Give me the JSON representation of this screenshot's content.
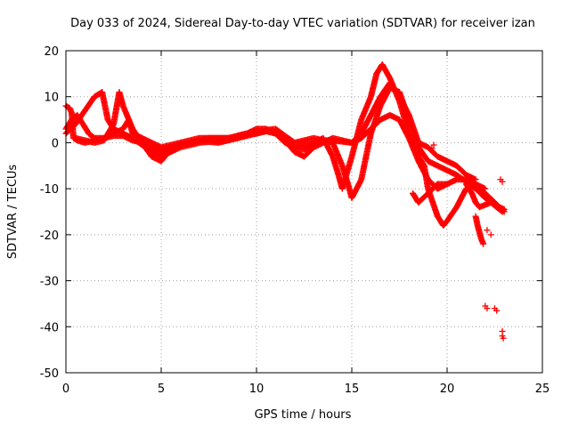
{
  "chart_data": {
    "type": "scatter",
    "title": "Day 033 of 2024, Sidereal Day-to-day VTEC variation (SDTVAR) for receiver izan",
    "xlabel": "GPS time / hours",
    "ylabel": "SDTVAR / TECUs",
    "xlim": [
      0,
      25
    ],
    "ylim": [
      -50,
      20
    ],
    "xticks": [
      0,
      5,
      10,
      15,
      20,
      25
    ],
    "yticks": [
      -50,
      -40,
      -30,
      -20,
      -10,
      0,
      10,
      20
    ],
    "xtick_labels": [
      "0",
      "5",
      "10",
      "15",
      "20",
      "25"
    ],
    "ytick_labels": [
      "-50",
      "-40",
      "-30",
      "-20",
      "-10",
      "0",
      "10",
      "20"
    ],
    "grid": true,
    "legend": "none",
    "marker": "+",
    "series_color": "#ff0000",
    "series": [
      {
        "name": "trace-a",
        "points": [
          [
            0.0,
            3
          ],
          [
            0.3,
            5
          ],
          [
            0.6,
            6
          ],
          [
            0.9,
            4
          ],
          [
            1.2,
            2
          ],
          [
            1.5,
            1
          ],
          [
            2.0,
            1
          ],
          [
            2.5,
            1.5
          ],
          [
            3.0,
            1.5
          ],
          [
            3.5,
            0.5
          ],
          [
            4.0,
            0
          ],
          [
            4.5,
            -1
          ],
          [
            5.0,
            -2
          ],
          [
            5.5,
            -1
          ],
          [
            6.0,
            -0.3
          ],
          [
            6.5,
            0
          ],
          [
            7.0,
            0.5
          ],
          [
            7.5,
            0.5
          ],
          [
            8.0,
            0.3
          ],
          [
            8.5,
            0.5
          ],
          [
            9.0,
            1
          ],
          [
            9.5,
            1.5
          ],
          [
            10.0,
            2
          ],
          [
            10.5,
            2.5
          ],
          [
            11.0,
            2.5
          ],
          [
            11.5,
            0.5
          ],
          [
            12.0,
            -2
          ],
          [
            12.5,
            -3
          ],
          [
            13.0,
            -1
          ],
          [
            13.5,
            0
          ],
          [
            14.0,
            1
          ],
          [
            14.5,
            0.5
          ],
          [
            15.0,
            0
          ],
          [
            15.5,
            1
          ],
          [
            16.0,
            3
          ],
          [
            16.5,
            5
          ],
          [
            17.0,
            6
          ],
          [
            17.5,
            5
          ],
          [
            18.0,
            1
          ],
          [
            18.5,
            -4
          ],
          [
            19.0,
            -8
          ],
          [
            19.5,
            -10
          ],
          [
            20.0,
            -9
          ],
          [
            20.5,
            -8
          ],
          [
            21.0,
            -8
          ],
          [
            21.5,
            -9
          ],
          [
            22.0,
            -11
          ],
          [
            22.5,
            -13
          ],
          [
            23.0,
            -15
          ]
        ]
      },
      {
        "name": "trace-b",
        "points": [
          [
            0.0,
            2
          ],
          [
            0.5,
            4
          ],
          [
            1.0,
            7
          ],
          [
            1.5,
            10
          ],
          [
            1.9,
            11
          ],
          [
            2.2,
            5
          ],
          [
            2.5,
            3
          ],
          [
            3.0,
            2
          ],
          [
            3.5,
            1
          ],
          [
            4.0,
            -0.5
          ],
          [
            4.5,
            -2
          ],
          [
            5.0,
            -3
          ],
          [
            5.5,
            -2
          ],
          [
            6.0,
            -1
          ],
          [
            6.5,
            -0.5
          ],
          [
            7.0,
            0
          ],
          [
            7.5,
            0.2
          ],
          [
            8.0,
            0
          ],
          [
            8.5,
            0.5
          ],
          [
            9.0,
            1.5
          ],
          [
            9.5,
            2
          ],
          [
            10.0,
            2
          ],
          [
            10.5,
            2.5
          ],
          [
            11.0,
            2
          ],
          [
            11.5,
            0
          ],
          [
            12.0,
            -1
          ],
          [
            12.5,
            -1.5
          ],
          [
            13.0,
            -0.5
          ],
          [
            13.5,
            0.5
          ],
          [
            14.0,
            0
          ],
          [
            14.5,
            -5
          ],
          [
            14.8,
            -9
          ],
          [
            15.0,
            -12
          ],
          [
            15.5,
            -8
          ],
          [
            16.0,
            2
          ],
          [
            16.5,
            8
          ],
          [
            17.0,
            12
          ],
          [
            17.5,
            11
          ],
          [
            18.0,
            5
          ],
          [
            18.5,
            -1
          ],
          [
            19.0,
            -4
          ],
          [
            19.5,
            -5
          ],
          [
            20.0,
            -6
          ],
          [
            20.5,
            -7
          ],
          [
            21.0,
            -8.5
          ],
          [
            21.5,
            -10
          ],
          [
            22.0,
            -12
          ],
          [
            22.5,
            -13.5
          ],
          [
            23.0,
            -14.5
          ]
        ]
      },
      {
        "name": "trace-c",
        "points": [
          [
            0.5,
            1
          ],
          [
            1.0,
            0.5
          ],
          [
            1.5,
            0
          ],
          [
            2.0,
            0.5
          ],
          [
            2.5,
            4
          ],
          [
            2.8,
            11
          ],
          [
            3.0,
            8
          ],
          [
            3.5,
            3
          ],
          [
            4.0,
            0
          ],
          [
            4.5,
            -3
          ],
          [
            5.0,
            -4
          ],
          [
            5.5,
            -1.5
          ],
          [
            6.0,
            -0.5
          ],
          [
            6.5,
            0
          ],
          [
            7.0,
            0.5
          ],
          [
            7.5,
            1
          ],
          [
            8.0,
            1
          ],
          [
            8.5,
            1
          ],
          [
            9.0,
            1.5
          ],
          [
            9.5,
            2
          ],
          [
            10.0,
            3
          ],
          [
            10.5,
            3
          ],
          [
            11.0,
            2
          ],
          [
            11.5,
            0.5
          ],
          [
            12.0,
            -1
          ],
          [
            12.5,
            -0.5
          ],
          [
            13.0,
            0
          ],
          [
            13.5,
            1
          ],
          [
            14.0,
            -3
          ],
          [
            14.3,
            -7
          ],
          [
            14.5,
            -10
          ],
          [
            15.0,
            -3
          ],
          [
            15.5,
            5
          ],
          [
            16.0,
            10
          ],
          [
            16.3,
            15
          ],
          [
            16.6,
            17
          ],
          [
            17.0,
            14
          ],
          [
            17.5,
            9
          ],
          [
            18.0,
            2
          ],
          [
            18.5,
            -3
          ],
          [
            18.8,
            -5
          ],
          [
            19.0,
            -10
          ],
          [
            19.5,
            -16
          ],
          [
            19.8,
            -18
          ],
          [
            20.0,
            -17
          ],
          [
            20.5,
            -14
          ],
          [
            21.0,
            -10
          ],
          [
            21.5,
            -9
          ],
          [
            22.0,
            -10
          ]
        ]
      },
      {
        "name": "trace-d",
        "points": [
          [
            0.0,
            8
          ],
          [
            0.2,
            7.5
          ],
          [
            0.3,
            6.5
          ],
          [
            0.4,
            1
          ],
          [
            0.6,
            0.5
          ],
          [
            1.0,
            0
          ],
          [
            1.5,
            0.5
          ],
          [
            2.0,
            1
          ],
          [
            2.5,
            2
          ],
          [
            3.0,
            3
          ],
          [
            3.3,
            5
          ],
          [
            3.5,
            2
          ],
          [
            4.0,
            1
          ],
          [
            5.0,
            -1
          ],
          [
            6.0,
            0
          ],
          [
            7.0,
            1
          ],
          [
            8.0,
            1
          ],
          [
            9.0,
            1
          ],
          [
            10.0,
            2.5
          ],
          [
            11.0,
            3
          ],
          [
            12.0,
            0
          ],
          [
            12.5,
            0.5
          ],
          [
            13.0,
            1
          ],
          [
            13.5,
            0.5
          ],
          [
            14.0,
            0.5
          ],
          [
            15.0,
            0
          ],
          [
            15.5,
            2
          ],
          [
            16.0,
            6
          ],
          [
            16.5,
            10
          ],
          [
            17.0,
            13
          ],
          [
            17.5,
            10
          ],
          [
            18.0,
            6
          ],
          [
            18.5,
            0
          ],
          [
            19.0,
            -1
          ],
          [
            19.5,
            -3
          ],
          [
            20.0,
            -4
          ],
          [
            20.5,
            -5
          ],
          [
            21.0,
            -7
          ],
          [
            21.5,
            -8
          ]
        ]
      },
      {
        "name": "trace-e",
        "points": [
          [
            18.2,
            -11
          ],
          [
            18.5,
            -13
          ],
          [
            19.0,
            -11
          ],
          [
            19.5,
            -9
          ],
          [
            20.0,
            -9
          ]
        ]
      },
      {
        "name": "trace-f",
        "points": [
          [
            21.0,
            -9
          ],
          [
            21.3,
            -11
          ],
          [
            21.5,
            -13
          ],
          [
            21.7,
            -14
          ],
          [
            22.0,
            -13.5
          ],
          [
            22.3,
            -13
          ],
          [
            22.6,
            -14
          ],
          [
            22.9,
            -15
          ]
        ]
      },
      {
        "name": "trace-g",
        "points": [
          [
            21.5,
            -16
          ],
          [
            21.6,
            -18
          ],
          [
            21.7,
            -19.5
          ],
          [
            21.8,
            -21
          ],
          [
            21.9,
            -22
          ]
        ]
      },
      {
        "name": "isolated",
        "points": [
          [
            22.1,
            -19
          ],
          [
            22.3,
            -20
          ],
          [
            22.8,
            -8
          ],
          [
            22.9,
            -8.5
          ],
          [
            22.0,
            -35.5
          ],
          [
            22.1,
            -36
          ],
          [
            22.5,
            -36
          ],
          [
            22.6,
            -36.5
          ],
          [
            22.9,
            -41
          ],
          [
            22.9,
            -42
          ],
          [
            22.95,
            -42.5
          ],
          [
            19.3,
            -0.5
          ],
          [
            19.2,
            -1.2
          ]
        ]
      }
    ]
  }
}
